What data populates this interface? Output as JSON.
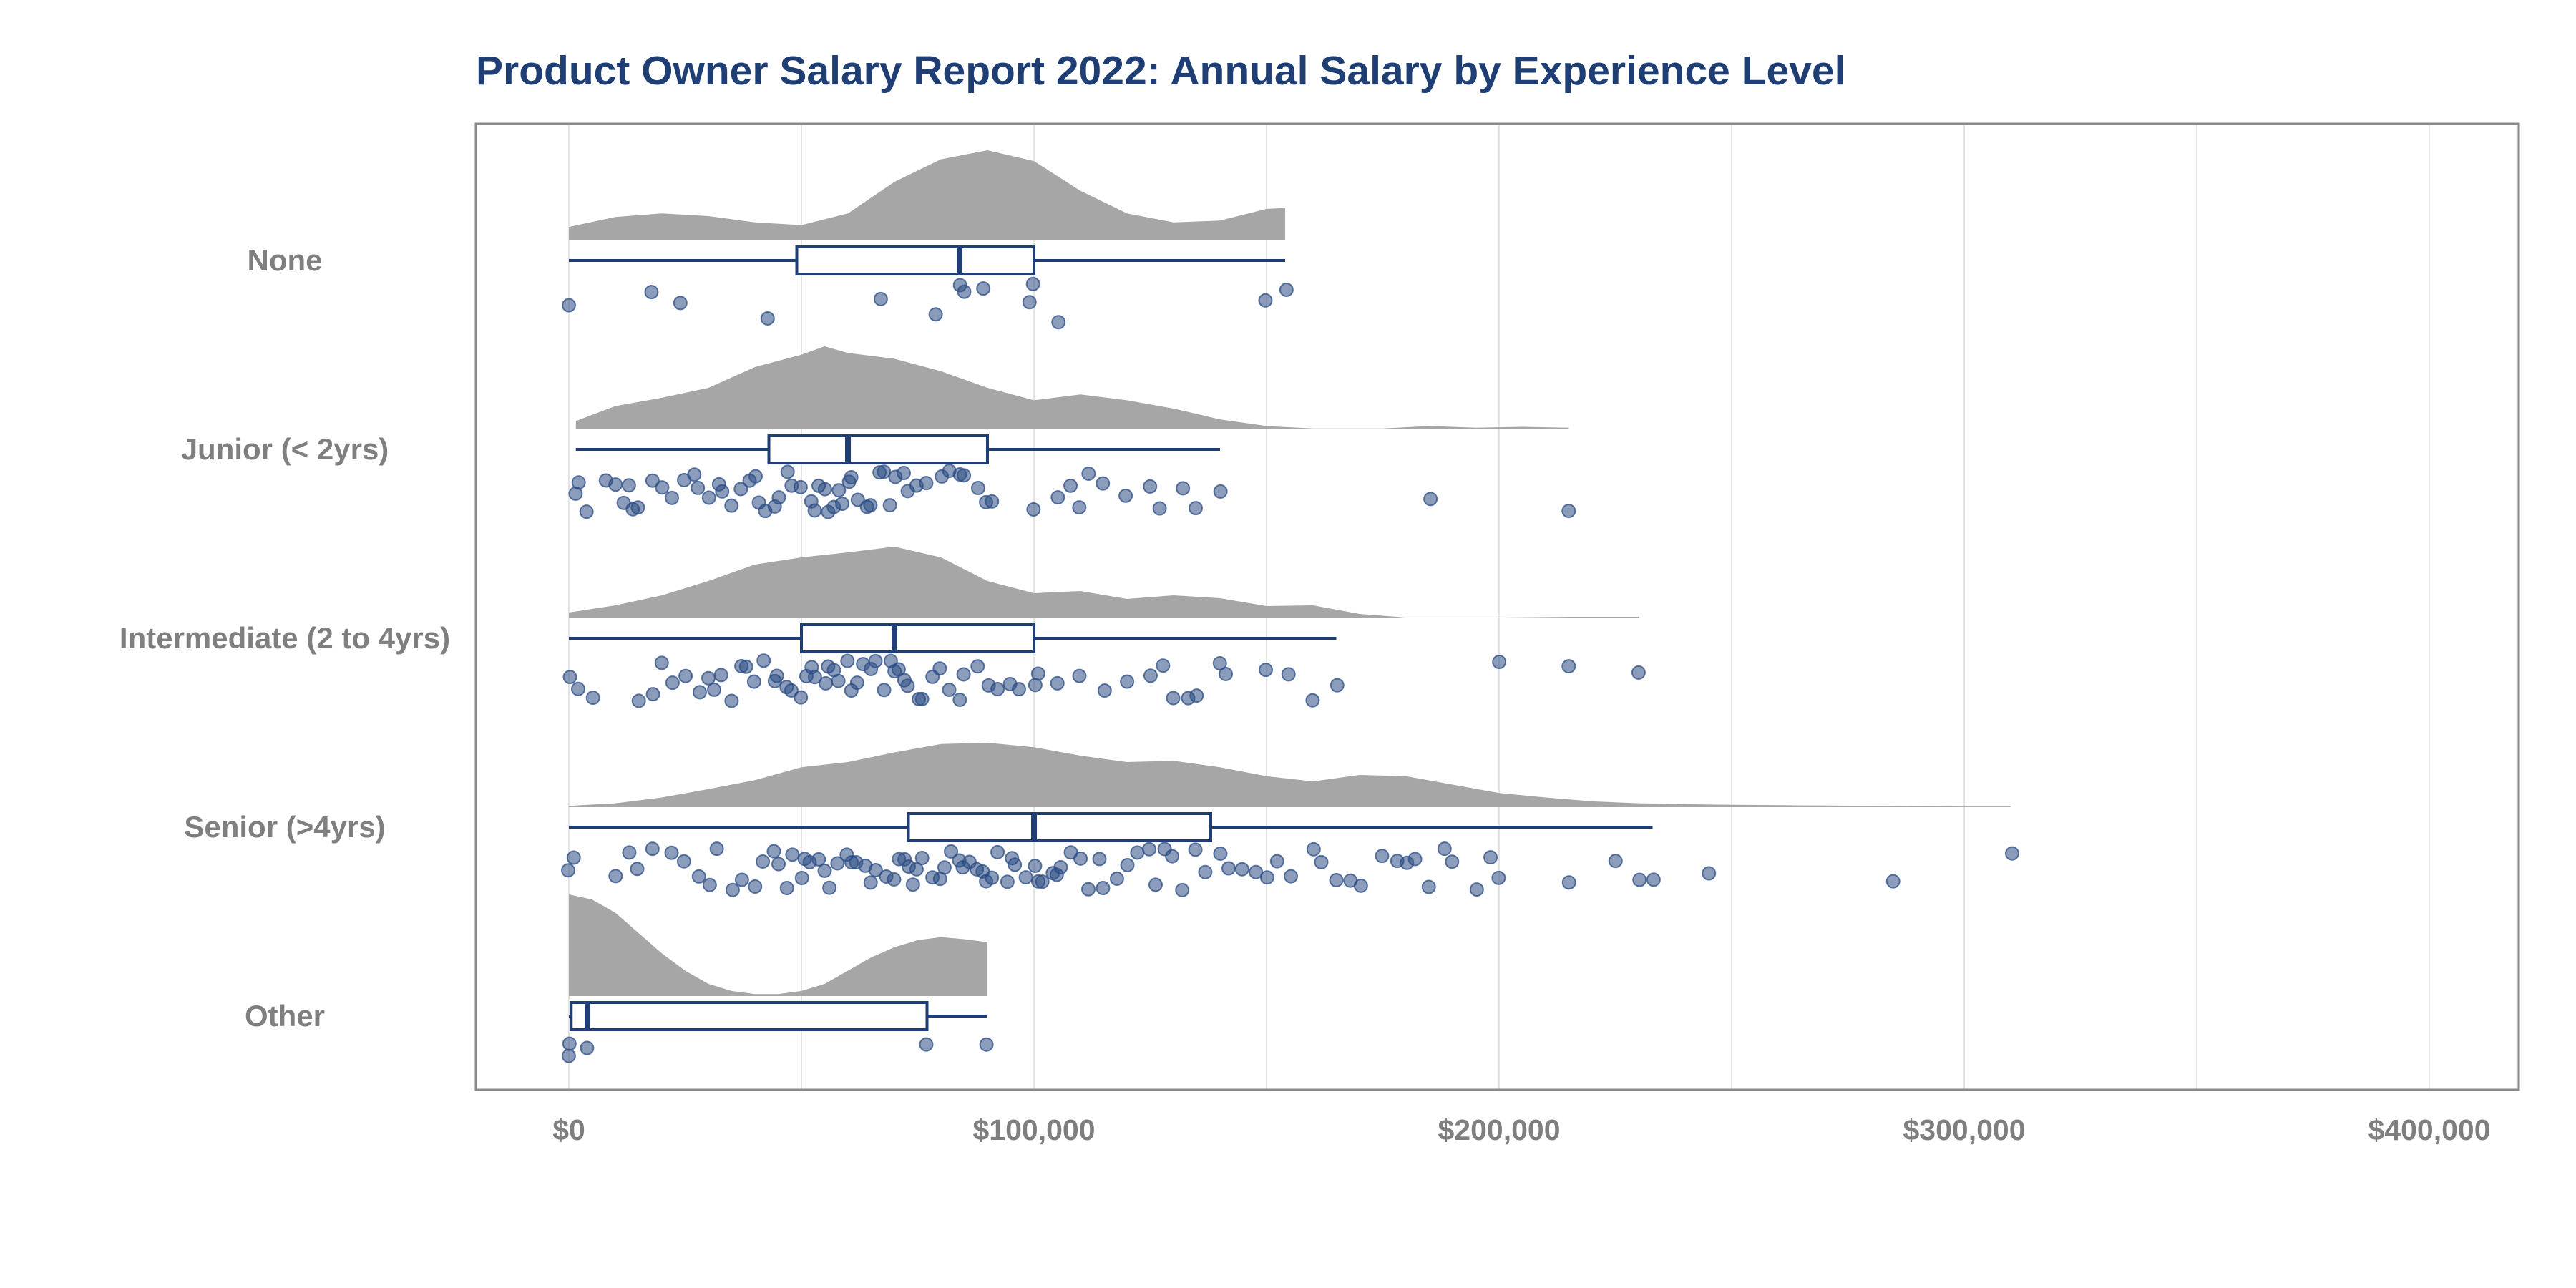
{
  "chart_data": {
    "type": "raincloud",
    "title": "Product Owner Salary Report 2022: Annual Salary by Experience Level",
    "xlabel": "",
    "ylabel": "",
    "xlim": [
      -20000,
      420000
    ],
    "x_ticks": [
      0,
      100000,
      200000,
      300000,
      400000
    ],
    "x_tick_labels": [
      "$0",
      "$100,000",
      "$200,000",
      "$300,000",
      "$400,000"
    ],
    "grid": "vertical",
    "legend": "none",
    "colors": {
      "title": "#1f3f74",
      "box": "#1f3f74",
      "points": "#2b4c84",
      "density": "#a6a6a6",
      "panel_border": "#8a8a8a",
      "labels": "#7f7f7f",
      "grid": "#e4e4e4"
    },
    "categories": [
      "None",
      "Junior (< 2yrs)",
      "Intermediate (2 to 4yrs)",
      "Senior (>4yrs)",
      "Other"
    ],
    "groups": [
      {
        "name": "None",
        "box": {
          "min": 0,
          "q1": 49000,
          "median": 84000,
          "q3": 100000,
          "max": 154000
        },
        "density": [
          [
            0,
            0.15
          ],
          [
            10000,
            0.26
          ],
          [
            20000,
            0.3
          ],
          [
            30000,
            0.27
          ],
          [
            40000,
            0.2
          ],
          [
            50000,
            0.17
          ],
          [
            60000,
            0.3
          ],
          [
            70000,
            0.65
          ],
          [
            80000,
            0.9
          ],
          [
            90000,
            1.0
          ],
          [
            100000,
            0.88
          ],
          [
            110000,
            0.55
          ],
          [
            120000,
            0.3
          ],
          [
            130000,
            0.2
          ],
          [
            140000,
            0.22
          ],
          [
            150000,
            0.35
          ],
          [
            154000,
            0.36
          ]
        ],
        "points": [
          0,
          18000,
          24000,
          43000,
          67000,
          79000,
          84000,
          85000,
          89000,
          99000,
          100000,
          105000,
          150000,
          154000
        ]
      },
      {
        "name": "Junior (< 2yrs)",
        "box": {
          "min": 1500,
          "q1": 43000,
          "median": 60000,
          "q3": 90000,
          "max": 140000
        },
        "density": [
          [
            1500,
            0.1
          ],
          [
            10000,
            0.28
          ],
          [
            20000,
            0.38
          ],
          [
            30000,
            0.5
          ],
          [
            40000,
            0.75
          ],
          [
            50000,
            0.9
          ],
          [
            55000,
            1.0
          ],
          [
            60000,
            0.92
          ],
          [
            70000,
            0.85
          ],
          [
            80000,
            0.7
          ],
          [
            90000,
            0.5
          ],
          [
            100000,
            0.35
          ],
          [
            110000,
            0.42
          ],
          [
            120000,
            0.35
          ],
          [
            130000,
            0.25
          ],
          [
            140000,
            0.12
          ],
          [
            150000,
            0.04
          ],
          [
            160000,
            0.01
          ],
          [
            175000,
            0.01
          ],
          [
            185000,
            0.04
          ],
          [
            195000,
            0.02
          ],
          [
            205000,
            0.03
          ],
          [
            215000,
            0.02
          ]
        ],
        "points": [
          1500,
          2000,
          4000,
          8000,
          10000,
          12000,
          13000,
          14000,
          15000,
          18000,
          20000,
          22000,
          25000,
          27000,
          28000,
          30000,
          32000,
          33000,
          35000,
          37000,
          39000,
          40000,
          41000,
          42000,
          44000,
          45000,
          47000,
          48000,
          50000,
          52000,
          53000,
          54000,
          55000,
          56000,
          57000,
          58000,
          59000,
          60000,
          61000,
          62000,
          64000,
          65000,
          67000,
          68000,
          69000,
          70000,
          72000,
          73000,
          75000,
          77000,
          80000,
          82000,
          84000,
          85000,
          88000,
          90000,
          91000,
          100000,
          105000,
          108000,
          110000,
          112000,
          115000,
          120000,
          125000,
          127000,
          132000,
          135000,
          140000,
          185000,
          215000
        ]
      },
      {
        "name": "Intermediate (2 to 4yrs)",
        "box": {
          "min": 0,
          "q1": 50000,
          "median": 70000,
          "q3": 100000,
          "max": 165000
        },
        "density": [
          [
            0,
            0.08
          ],
          [
            10000,
            0.18
          ],
          [
            20000,
            0.32
          ],
          [
            30000,
            0.52
          ],
          [
            40000,
            0.75
          ],
          [
            50000,
            0.85
          ],
          [
            60000,
            0.92
          ],
          [
            70000,
            1.0
          ],
          [
            80000,
            0.85
          ],
          [
            90000,
            0.52
          ],
          [
            100000,
            0.35
          ],
          [
            110000,
            0.38
          ],
          [
            120000,
            0.27
          ],
          [
            130000,
            0.32
          ],
          [
            140000,
            0.28
          ],
          [
            150000,
            0.17
          ],
          [
            160000,
            0.18
          ],
          [
            170000,
            0.06
          ],
          [
            180000,
            0.01
          ],
          [
            200000,
            0.01
          ],
          [
            215000,
            0.02
          ],
          [
            230000,
            0.02
          ]
        ],
        "points": [
          0,
          2000,
          5000,
          15000,
          18000,
          20000,
          22000,
          25000,
          28000,
          30000,
          31000,
          33000,
          35000,
          37000,
          38000,
          40000,
          42000,
          44000,
          45000,
          47000,
          48000,
          50000,
          51000,
          52000,
          53000,
          55000,
          56000,
          57000,
          58000,
          60000,
          61000,
          62000,
          63000,
          65000,
          66000,
          68000,
          69000,
          70000,
          71000,
          72000,
          73000,
          75000,
          76000,
          78000,
          80000,
          82000,
          84000,
          85000,
          88000,
          90000,
          92000,
          95000,
          97000,
          100000,
          101000,
          105000,
          110000,
          115000,
          120000,
          125000,
          128000,
          130000,
          133000,
          135000,
          140000,
          141000,
          150000,
          155000,
          160000,
          165000,
          200000,
          215000,
          230000
        ]
      },
      {
        "name": "Senior (>4yrs)",
        "box": {
          "min": 0,
          "q1": 73000,
          "median": 100000,
          "q3": 138000,
          "max": 233000
        },
        "density": [
          [
            0,
            0.02
          ],
          [
            10000,
            0.06
          ],
          [
            20000,
            0.15
          ],
          [
            30000,
            0.28
          ],
          [
            40000,
            0.42
          ],
          [
            50000,
            0.62
          ],
          [
            60000,
            0.7
          ],
          [
            70000,
            0.85
          ],
          [
            80000,
            0.98
          ],
          [
            90000,
            1.0
          ],
          [
            100000,
            0.93
          ],
          [
            110000,
            0.8
          ],
          [
            120000,
            0.7
          ],
          [
            130000,
            0.72
          ],
          [
            140000,
            0.62
          ],
          [
            150000,
            0.48
          ],
          [
            160000,
            0.4
          ],
          [
            170000,
            0.5
          ],
          [
            180000,
            0.48
          ],
          [
            190000,
            0.35
          ],
          [
            200000,
            0.22
          ],
          [
            210000,
            0.15
          ],
          [
            220000,
            0.09
          ],
          [
            230000,
            0.06
          ],
          [
            245000,
            0.04
          ],
          [
            260000,
            0.03
          ],
          [
            280000,
            0.02
          ],
          [
            300000,
            0.01
          ],
          [
            310000,
            0.01
          ]
        ],
        "points": [
          0,
          1000,
          10000,
          13000,
          15000,
          18000,
          22000,
          25000,
          28000,
          30000,
          32000,
          35000,
          37000,
          40000,
          42000,
          44000,
          45000,
          47000,
          48000,
          50000,
          51000,
          52000,
          54000,
          55000,
          56000,
          58000,
          60000,
          61000,
          62000,
          64000,
          65000,
          66000,
          68000,
          70000,
          71000,
          72000,
          73000,
          74000,
          75000,
          76000,
          78000,
          80000,
          81000,
          82000,
          84000,
          85000,
          86000,
          88000,
          89000,
          90000,
          91000,
          92000,
          94000,
          95000,
          96000,
          98000,
          100000,
          101000,
          102000,
          104000,
          105000,
          106000,
          108000,
          110000,
          112000,
          114000,
          115000,
          118000,
          120000,
          122000,
          125000,
          126000,
          128000,
          130000,
          132000,
          135000,
          137000,
          140000,
          142000,
          145000,
          148000,
          150000,
          152000,
          155000,
          160000,
          162000,
          165000,
          168000,
          170000,
          175000,
          178000,
          180000,
          182000,
          185000,
          188000,
          190000,
          195000,
          198000,
          200000,
          215000,
          225000,
          230000,
          233000,
          245000,
          285000,
          310000
        ]
      },
      {
        "name": "Other",
        "box": {
          "min": 0,
          "q1": 500,
          "median": 4000,
          "q3": 77000,
          "max": 90000
        },
        "density": [
          [
            0,
            1.0
          ],
          [
            5000,
            0.95
          ],
          [
            10000,
            0.82
          ],
          [
            15000,
            0.62
          ],
          [
            20000,
            0.42
          ],
          [
            25000,
            0.25
          ],
          [
            30000,
            0.12
          ],
          [
            35000,
            0.05
          ],
          [
            40000,
            0.02
          ],
          [
            45000,
            0.02
          ],
          [
            50000,
            0.05
          ],
          [
            55000,
            0.12
          ],
          [
            60000,
            0.25
          ],
          [
            65000,
            0.38
          ],
          [
            70000,
            0.48
          ],
          [
            75000,
            0.55
          ],
          [
            80000,
            0.58
          ],
          [
            85000,
            0.56
          ],
          [
            90000,
            0.53
          ]
        ],
        "points": [
          0,
          200,
          4000,
          77000,
          90000
        ]
      }
    ]
  }
}
